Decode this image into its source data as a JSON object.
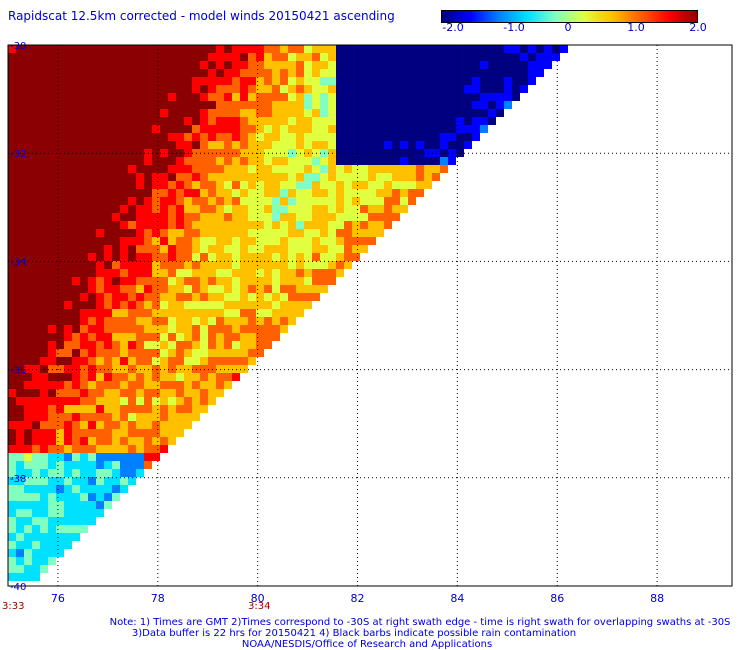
{
  "title": "Rapidscat 12.5km corrected - model winds 20150421 ascending",
  "colorbar": {
    "ticks": [
      "-2.0",
      "-1.0",
      "0",
      "1.0",
      "2.0"
    ],
    "tick_values": [
      -2.0,
      -1.0,
      0,
      1.0,
      2.0
    ],
    "colors": [
      "#000080",
      "#0000ff",
      "#0080ff",
      "#00e0ff",
      "#80ffc0",
      "#e0ff40",
      "#ffc000",
      "#ff6000",
      "#ff0000",
      "#8b0000"
    ]
  },
  "axes": {
    "x_ticks": [
      "76",
      "78",
      "80",
      "82",
      "84",
      "86",
      "88"
    ],
    "x_values": [
      76,
      78,
      80,
      82,
      84,
      86,
      88
    ],
    "y_ticks": [
      "-30",
      "-32",
      "-34",
      "-36",
      "-38",
      "-40"
    ],
    "y_values": [
      -30,
      -32,
      -34,
      -36,
      -38,
      -40
    ],
    "xlim": [
      75,
      89.5
    ],
    "ylim": [
      -40,
      -30
    ],
    "grid": true
  },
  "times": {
    "left": "3:33",
    "right": "3:34"
  },
  "notes": {
    "line1": "Note: 1) Times are GMT 2)Times correspond to -30S at right swath edge - time is right swath for overlapping swaths at -30S",
    "line2": "3)Data buffer is 22 hrs for 20150421 4) Black barbs indicate possible rain contamination",
    "line3": "NOAA/NESDIS/Office of Research and Applications"
  },
  "colors": {
    "label_blue": "#0000c8",
    "time_red": "#8b0000",
    "grid": "#000000"
  }
}
